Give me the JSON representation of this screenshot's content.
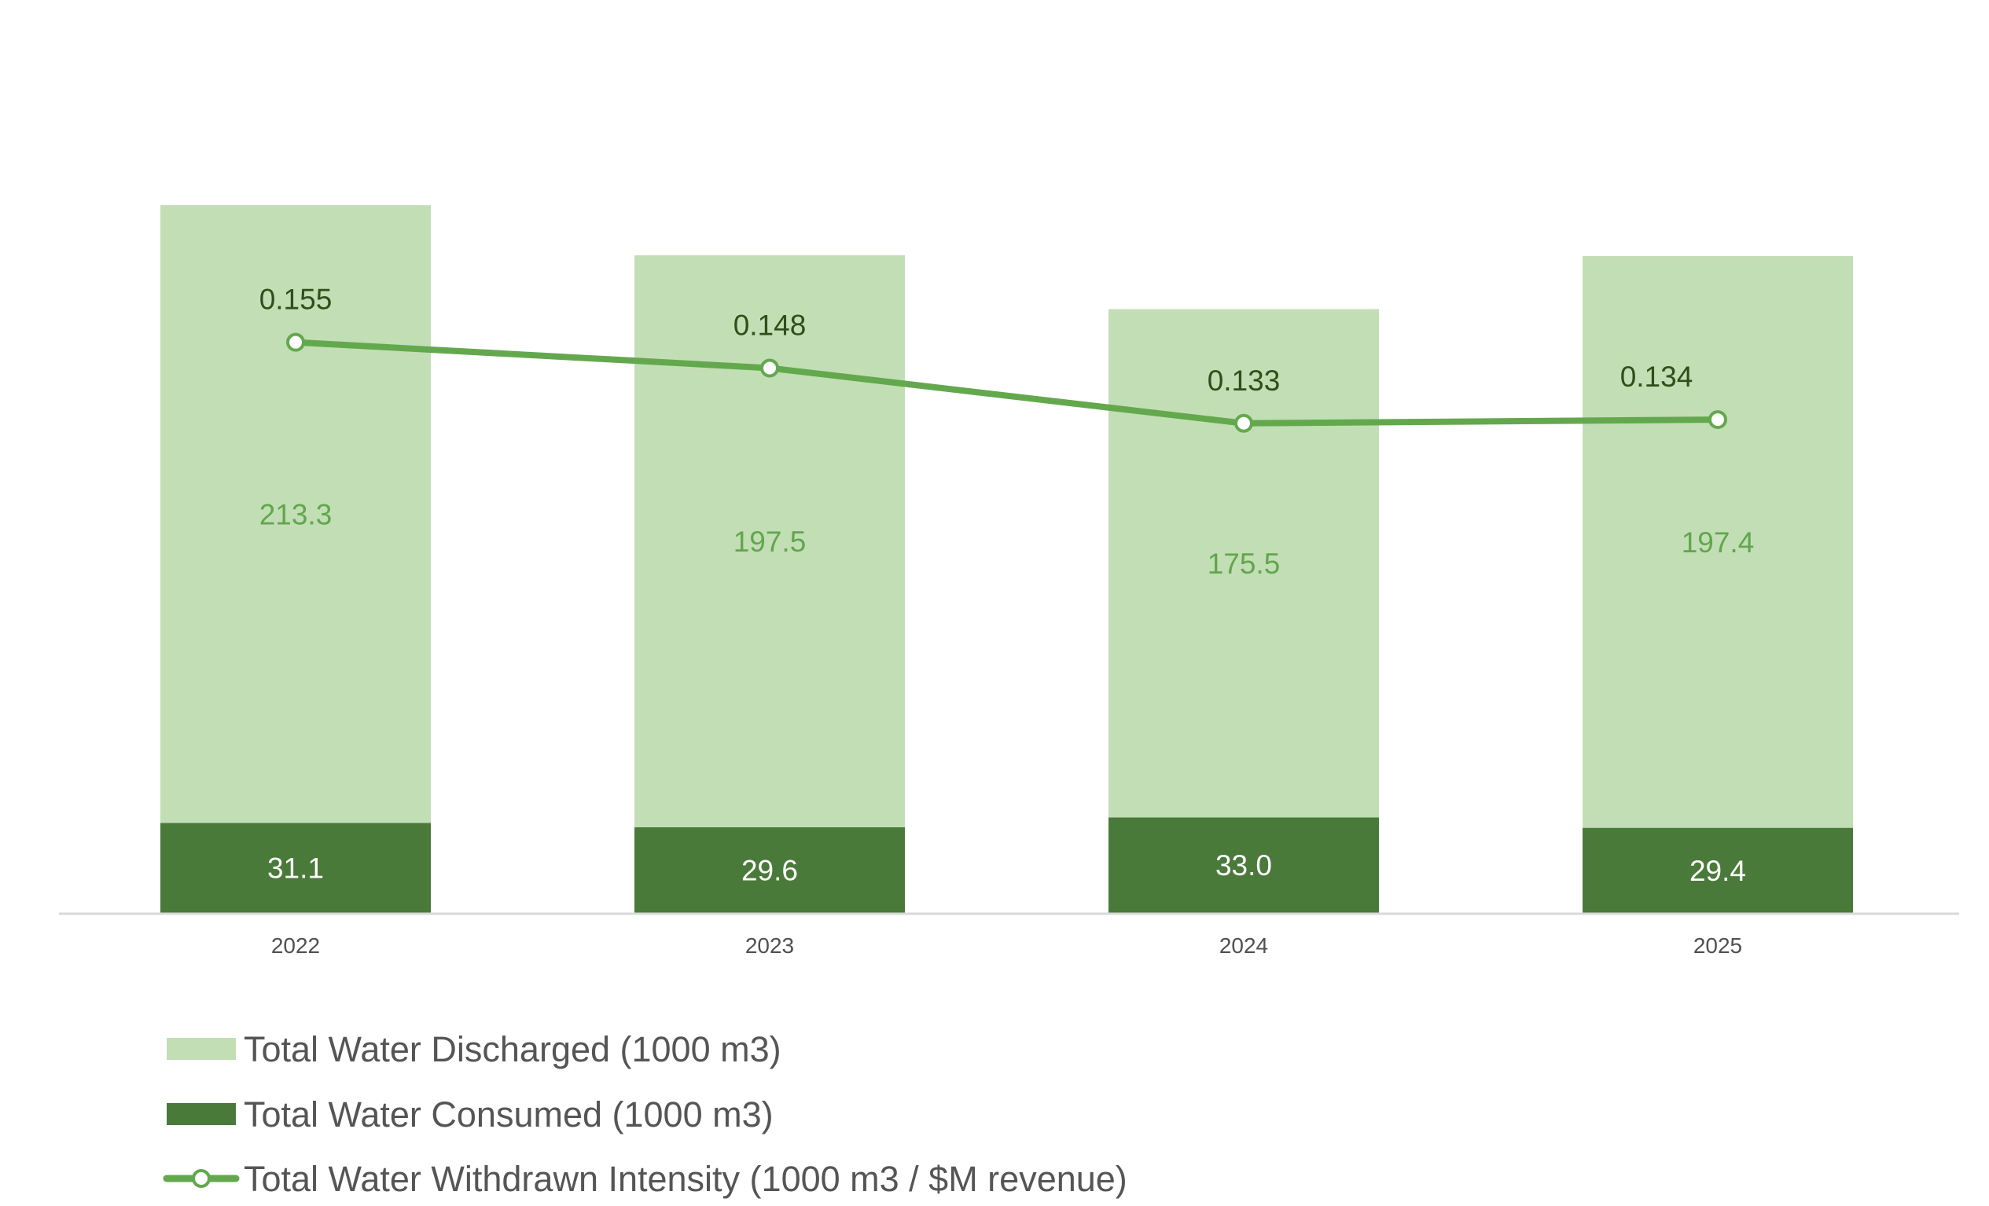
{
  "chart_data": {
    "type": "bar",
    "stacked": true,
    "categories": [
      "2022",
      "2023",
      "2024",
      "2025"
    ],
    "series": [
      {
        "name": "Total Water Consumed (1000 m3)",
        "kind": "bar",
        "color": "#4a7a3a",
        "values": [
          31.1,
          29.6,
          33.0,
          29.4
        ],
        "labels": [
          "31.1",
          "29.6",
          "33.0",
          "29.4"
        ],
        "label_color": "#ffffff"
      },
      {
        "name": "Total Water Discharged (1000 m3)",
        "kind": "bar",
        "color": "#c2deb5",
        "values": [
          213.3,
          197.5,
          175.5,
          197.4
        ],
        "labels": [
          "213.3",
          "197.5",
          "175.5",
          "197.4"
        ],
        "label_color": "#62a64d"
      },
      {
        "name": "Total Water Withdrawn Intensity (1000 m3 / $M revenue)",
        "kind": "line",
        "color": "#64a84e",
        "values": [
          0.155,
          0.148,
          0.133,
          0.134
        ],
        "labels": [
          "0.155",
          "0.148",
          "0.133",
          "0.134"
        ]
      }
    ],
    "legend": {
      "position": "bottom-left",
      "order": [
        "Total Water Discharged (1000 m3)",
        "Total Water Consumed (1000 m3)",
        "Total Water Withdrawn Intensity (1000 m3 / $M revenue)"
      ]
    },
    "y_bar_range": [
      0,
      250
    ],
    "y_line_range": [
      0,
      0.17
    ],
    "gridlines": false,
    "title": "",
    "xlabel": "",
    "ylabel": ""
  }
}
